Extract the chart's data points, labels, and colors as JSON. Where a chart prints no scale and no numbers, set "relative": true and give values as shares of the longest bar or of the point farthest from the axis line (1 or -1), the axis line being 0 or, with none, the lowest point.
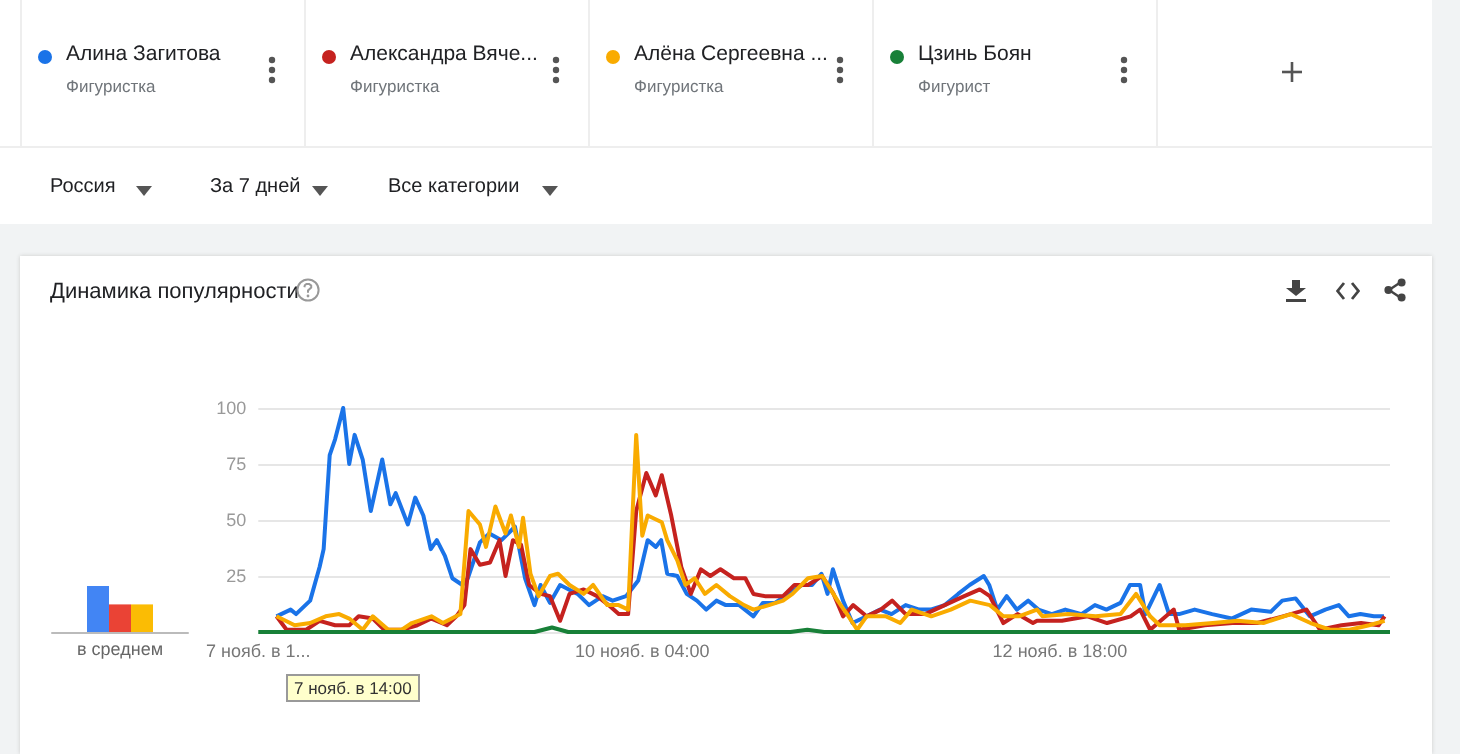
{
  "chart_data": [
    {
      "type": "bar",
      "relative": true,
      "categories": [
        "в среднем"
      ],
      "series": [
        {
          "color": "#4285f4",
          "values": [
            1
          ]
        },
        {
          "color": "#ea4335",
          "values": [
            0.6
          ]
        },
        {
          "color": "#fbbc04",
          "values": [
            0.6
          ]
        }
      ]
    },
    {
      "type": "line",
      "title": "Динамика популярности",
      "legend": "top",
      "marker": "none",
      "grid": "y",
      "annotations": [
        "Фигуристка",
        "Фигуристка",
        "Фигуристка",
        "Фигурист",
        "Россия",
        "За 7 дней",
        "Все категории",
        "7 нояб. в 14:00"
      ],
      "xlim": [
        "--11-07T19:00",
        "--11-14T19:00"
      ],
      "xticks": [
        {
          "value": "--11-07T19:00",
          "label": "7 нояб. в 1..."
        },
        {
          "value": "--11-10T04:00",
          "label": "10 нояб. в 04:00"
        },
        {
          "value": "--11-12T18:00",
          "label": "12 нояб. в 18:00"
        }
      ],
      "ylim": [
        0,
        100
      ],
      "yticks": [
        {
          "value": 0,
          "label": null
        },
        25,
        50,
        75,
        100
      ],
      "series": [
        {
          "name": "Алина Загитова",
          "color": "#1a73e8",
          "x": [
            "--11-07T21:42",
            "--11-07T23:48",
            "--11-08T00:36",
            "--11-08T02:42",
            "--11-08T04:06",
            "--11-08T04:42",
            "--11-08T05:36",
            "--11-08T06:24",
            "--11-08T07:36",
            "--11-08T08:30",
            "--11-08T09:18",
            "--11-08T10:30",
            "--11-08T11:42",
            "--11-08T13:24",
            "--11-08T14:36",
            "--11-08T15:24",
            "--11-08T17:12",
            "--11-08T18:18",
            "--11-08T19:30",
            "--11-08T20:36",
            "--11-08T21:30",
            "--11-08T22:42",
            "--11-08T23:48",
            "--11-09T01:18",
            "--11-09T02:06",
            "--11-09T03:54",
            "--11-09T05:18",
            "--11-09T07:06",
            "--11-09T09:06",
            "--11-09T10:36",
            "--11-09T12:00",
            "--11-09T12:54",
            "--11-09T14:18",
            "--11-09T15:48",
            "--11-09T18:24",
            "--11-09T20:06",
            "--11-09T22:06",
            "--11-09T23:36",
            "--11-10T01:36",
            "--11-10T03:24",
            "--11-10T04:48",
            "--11-10T06:00",
            "--11-10T06:48",
            "--11-10T07:42",
            "--11-10T09:12",
            "--11-10T10:36",
            "--11-10T12:06",
            "--11-10T13:30",
            "--11-10T15:00",
            "--11-10T16:24",
            "--11-10T18:24",
            "--11-10T20:30",
            "--11-10T21:54",
            "--11-10T23:42",
            "--11-11T01:42",
            "--11-11T03:42",
            "--11-11T05:12",
            "--11-11T06:36",
            "--11-11T07:30",
            "--11-11T08:18",
            "--11-11T09:48",
            "--11-11T11:12",
            "--11-11T13:18",
            "--11-11T15:18",
            "--11-11T17:00",
            "--11-11T19:06",
            "--11-11T21:06",
            "--11-11T22:48",
            "--11-12T00:54",
            "--11-12T02:54",
            "--11-12T04:36",
            "--11-12T06:42",
            "--11-12T07:30",
            "--11-12T08:42",
            "--11-12T10:06",
            "--11-12T11:36",
            "--11-12T13:18",
            "--11-12T14:48",
            "--11-12T16:48",
            "--11-12T18:48",
            "--11-12T21:12",
            "--11-12T23:12",
            "--11-13T00:54",
            "--11-13T03:00",
            "--11-13T04:24",
            "--11-13T05:54",
            "--11-13T06:42",
            "--11-13T08:48",
            "--11-13T10:12",
            "--11-13T11:42",
            "--11-13T14:00",
            "--11-13T16:36",
            "--11-13T19:30",
            "--11-13T22:24",
            "--11-14T01:18",
            "--11-14T03:00",
            "--11-14T05:00",
            "--11-14T07:06",
            "--11-14T09:24",
            "--11-14T11:24",
            "--11-14T12:54",
            "--11-14T14:36",
            "--11-14T16:36",
            "--11-14T18:06"
          ],
          "values": [
            7,
            10,
            8,
            14,
            29,
            37,
            79,
            86,
            100,
            75,
            88,
            77,
            54,
            77,
            57,
            62,
            48,
            60,
            52,
            37,
            41,
            34,
            24,
            21,
            24,
            40,
            44,
            41,
            47,
            24,
            12,
            21,
            13,
            21,
            17,
            12,
            16,
            14,
            16,
            23,
            41,
            38,
            41,
            26,
            25,
            17,
            14,
            10,
            14,
            12,
            12,
            7,
            13,
            13,
            17,
            21,
            21,
            26,
            17,
            28,
            14,
            4,
            7,
            10,
            8,
            12,
            10,
            10,
            12,
            17,
            21,
            25,
            21,
            10,
            16,
            10,
            14,
            10,
            8,
            10,
            8,
            12,
            10,
            13,
            21,
            21,
            8,
            21,
            8,
            8,
            10,
            8,
            6,
            10,
            9,
            14,
            15,
            7,
            10,
            12,
            7,
            8,
            7,
            7
          ]
        },
        {
          "name": "Александра Вяче...",
          "color": "#c5221f",
          "x": [
            "--11-07T21:42",
            "--11-07T23:12",
            "--11-08T02:06",
            "--11-08T04:06",
            "--11-08T06:24",
            "--11-08T08:30",
            "--11-08T09:54",
            "--11-08T12:00",
            "--11-08T13:42",
            "--11-08T16:18",
            "--11-08T18:36",
            "--11-08T20:42",
            "--11-08T23:00",
            "--11-09T00:24",
            "--11-09T01:36",
            "--11-09T02:30",
            "--11-09T03:54",
            "--11-09T05:24",
            "--11-09T06:48",
            "--11-09T07:42",
            "--11-09T08:48",
            "--11-09T10:00",
            "--11-09T11:12",
            "--11-09T12:54",
            "--11-09T14:18",
            "--11-09T15:48",
            "--11-09T17:12",
            "--11-09T19:18",
            "--11-09T21:18",
            "--11-09T23:00",
            "--11-10T00:30",
            "--11-10T01:54",
            "--11-10T03:06",
            "--11-10T04:36",
            "--11-10T06:00",
            "--11-10T06:54",
            "--11-10T08:18",
            "--11-10T09:48",
            "--11-10T11:12",
            "--11-10T12:42",
            "--11-10T14:06",
            "--11-10T15:36",
            "--11-10T17:36",
            "--11-10T19:18",
            "--11-10T20:30",
            "--11-10T22:12",
            "--11-11T00:54",
            "--11-11T02:36",
            "--11-11T04:36",
            "--11-11T06:42",
            "--11-11T08:24",
            "--11-11T09:48",
            "--11-11T11:18",
            "--11-11T13:18",
            "--11-11T15:24",
            "--11-11T17:06",
            "--11-11T19:06",
            "--11-11T22:00",
            "--11-12T00:54",
            "--11-12T03:48",
            "--11-12T06:06",
            "--11-12T07:36",
            "--11-12T09:36",
            "--11-12T11:42",
            "--11-12T14:00",
            "--11-12T14:36",
            "--11-12T18:18",
            "--11-12T22:06",
            "--11-13T01:00",
            "--11-13T04:30",
            "--11-13T05:54",
            "--11-13T07:24",
            "--11-13T10:54",
            "--11-13T11:42",
            "--11-13T15:30",
            "--11-13T19:36",
            "--11-13T23:18",
            "--11-14T03:06",
            "--11-14T06:36",
            "--11-14T08:36",
            "--11-14T11:48",
            "--11-14T14:42",
            "--11-14T17:18",
            "--11-14T18:12"
          ],
          "values": [
            7,
            1,
            1,
            5,
            3,
            3,
            7,
            6,
            1,
            1,
            3,
            6,
            3,
            7,
            12,
            37,
            30,
            31,
            41,
            25,
            41,
            39,
            21,
            17,
            16,
            5,
            17,
            19,
            16,
            12,
            8,
            8,
            54,
            71,
            61,
            70,
            52,
            29,
            17,
            28,
            25,
            28,
            24,
            24,
            17,
            16,
            16,
            21,
            21,
            25,
            17,
            7,
            12,
            7,
            10,
            14,
            8,
            8,
            12,
            16,
            19,
            16,
            4,
            8,
            4,
            5,
            5,
            7,
            4,
            7,
            10,
            1,
            10,
            1,
            3,
            4,
            4,
            7,
            10,
            1,
            3,
            4,
            3,
            7
          ]
        },
        {
          "name": "Алёна Сергеевна ...",
          "color": "#f9ab00",
          "x": [
            "--11-07T21:42",
            "--11-08T00:24",
            "--11-08T02:42",
            "--11-08T05:00",
            "--11-08T07:00",
            "--11-08T08:30",
            "--11-08T10:30",
            "--11-08T12:00",
            "--11-08T14:18",
            "--11-08T16:18",
            "--11-08T17:48",
            "--11-08T20:42",
            "--11-08T22:24",
            "--11-09T01:00",
            "--11-09T02:12",
            "--11-09T03:54",
            "--11-09T04:48",
            "--11-09T06:12",
            "--11-09T07:42",
            "--11-09T08:30",
            "--11-09T09:42",
            "--11-09T10:18",
            "--11-09T11:24",
            "--11-09T12:36",
            "--11-09T14:18",
            "--11-09T15:30",
            "--11-09T17:12",
            "--11-09T19:18",
            "--11-09T20:42",
            "--11-09T22:48",
            "--11-10T00:30",
            "--11-10T01:54",
            "--11-10T03:06",
            "--11-10T04:00",
            "--11-10T04:48",
            "--11-10T06:54",
            "--11-10T07:42",
            "--11-10T09:12",
            "--11-10T10:24",
            "--11-10T11:48",
            "--11-10T13:18",
            "--11-10T15:00",
            "--11-10T17:00",
            "--11-10T19:06",
            "--11-10T20:30",
            "--11-10T22:48",
            "--11-11T00:54",
            "--11-11T02:18",
            "--11-11T04:36",
            "--11-11T06:42",
            "--11-11T09:00",
            "--11-11T10:24",
            "--11-11T11:54",
            "--11-11T13:18",
            "--11-11T16:12",
            "--11-11T18:18",
            "--11-11T20:00",
            "--11-11T22:54",
            "--11-12T01:48",
            "--11-12T04:42",
            "--11-12T07:36",
            "--11-12T09:36",
            "--11-12T11:54",
            "--11-12T14:36",
            "--11-12T15:24",
            "--11-12T19:12",
            "--11-12T23:18",
            "--11-13T03:00",
            "--11-13T05:18",
            "--11-13T07:24",
            "--11-13T08:48",
            "--11-13T12:36",
            "--11-13T16:42",
            "--11-13T20:24",
            "--11-14T00:12",
            "--11-14T04:18",
            "--11-14T07:12",
            "--11-14T10:06",
            "--11-14T13:00",
            "--11-14T15:54",
            "--11-14T18:12"
          ],
          "values": [
            7,
            3,
            4,
            7,
            8,
            6,
            1,
            7,
            1,
            1,
            4,
            7,
            4,
            8,
            54,
            48,
            38,
            56,
            44,
            52,
            38,
            51,
            26,
            16,
            25,
            26,
            21,
            17,
            21,
            12,
            12,
            10,
            88,
            43,
            52,
            49,
            41,
            32,
            21,
            24,
            17,
            21,
            16,
            12,
            10,
            12,
            14,
            17,
            24,
            25,
            14,
            8,
            1,
            7,
            7,
            4,
            10,
            7,
            10,
            14,
            12,
            7,
            7,
            10,
            7,
            8,
            7,
            8,
            17,
            7,
            3,
            3,
            4,
            5,
            4,
            8,
            4,
            1,
            1,
            3,
            5
          ]
        },
        {
          "name": "Цзинь Боян",
          "color": "#188038",
          "x": [
            "--11-07T19:00",
            "--11-09T12:00",
            "--11-09T14:36",
            "--11-09T17:00",
            "--11-11T02:00",
            "--11-11T04:30",
            "--11-11T07:00",
            "--11-14T19:00"
          ],
          "values": [
            0,
            0,
            2,
            0,
            0,
            1,
            0,
            0
          ]
        }
      ]
    }
  ]
}
